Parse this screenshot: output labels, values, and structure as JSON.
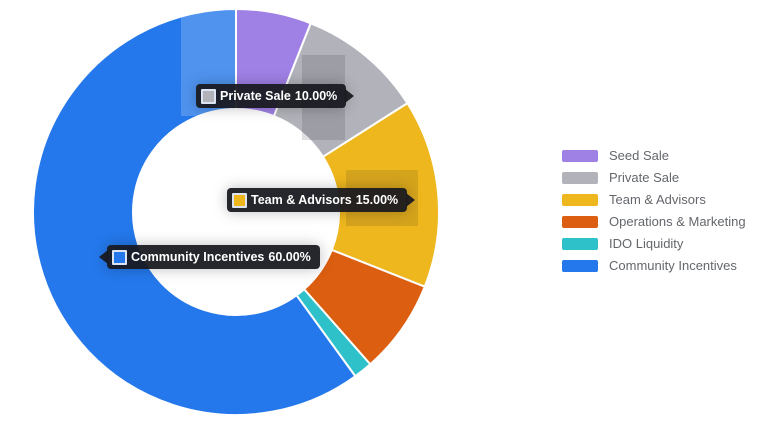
{
  "chart_data": {
    "type": "pie",
    "variant": "donut",
    "direction": "clockwise",
    "start_angle_deg": 0,
    "inner_radius_ratio": 0.51,
    "legend_position": "right",
    "background": "#FFFFFF",
    "series": [
      {
        "label": "Seed Sale",
        "value": 6,
        "color": "#9F80E5"
      },
      {
        "label": "Private Sale",
        "value": 10,
        "color": "#B2B3BA"
      },
      {
        "label": "Team & Advisors",
        "value": 15,
        "color": "#EEB71D"
      },
      {
        "label": "Operations & Marketing",
        "value": 7.5,
        "color": "#DC5E10"
      },
      {
        "label": "IDO Liquidity",
        "value": 1.5,
        "color": "#2FC1C9"
      },
      {
        "label": "Community Incentives",
        "value": 60,
        "color": "#2478EB"
      }
    ],
    "visible_data_labels": [
      "Private Sale 10.00%",
      "Team & Advisors 15.00%",
      "Community Incentives 60.00%"
    ]
  },
  "tooltips": [
    {
      "label": "Private Sale",
      "value": "10.00%"
    },
    {
      "label": "Team & Advisors",
      "value": "15.00%"
    },
    {
      "label": "Community Incentives",
      "value": "60.00%"
    }
  ],
  "colors": {
    "tooltip_background": "#18181F",
    "tooltip_text": "#FFFFFF",
    "legend_text": "#64676C",
    "slice_separator": "#FFFFFF"
  }
}
